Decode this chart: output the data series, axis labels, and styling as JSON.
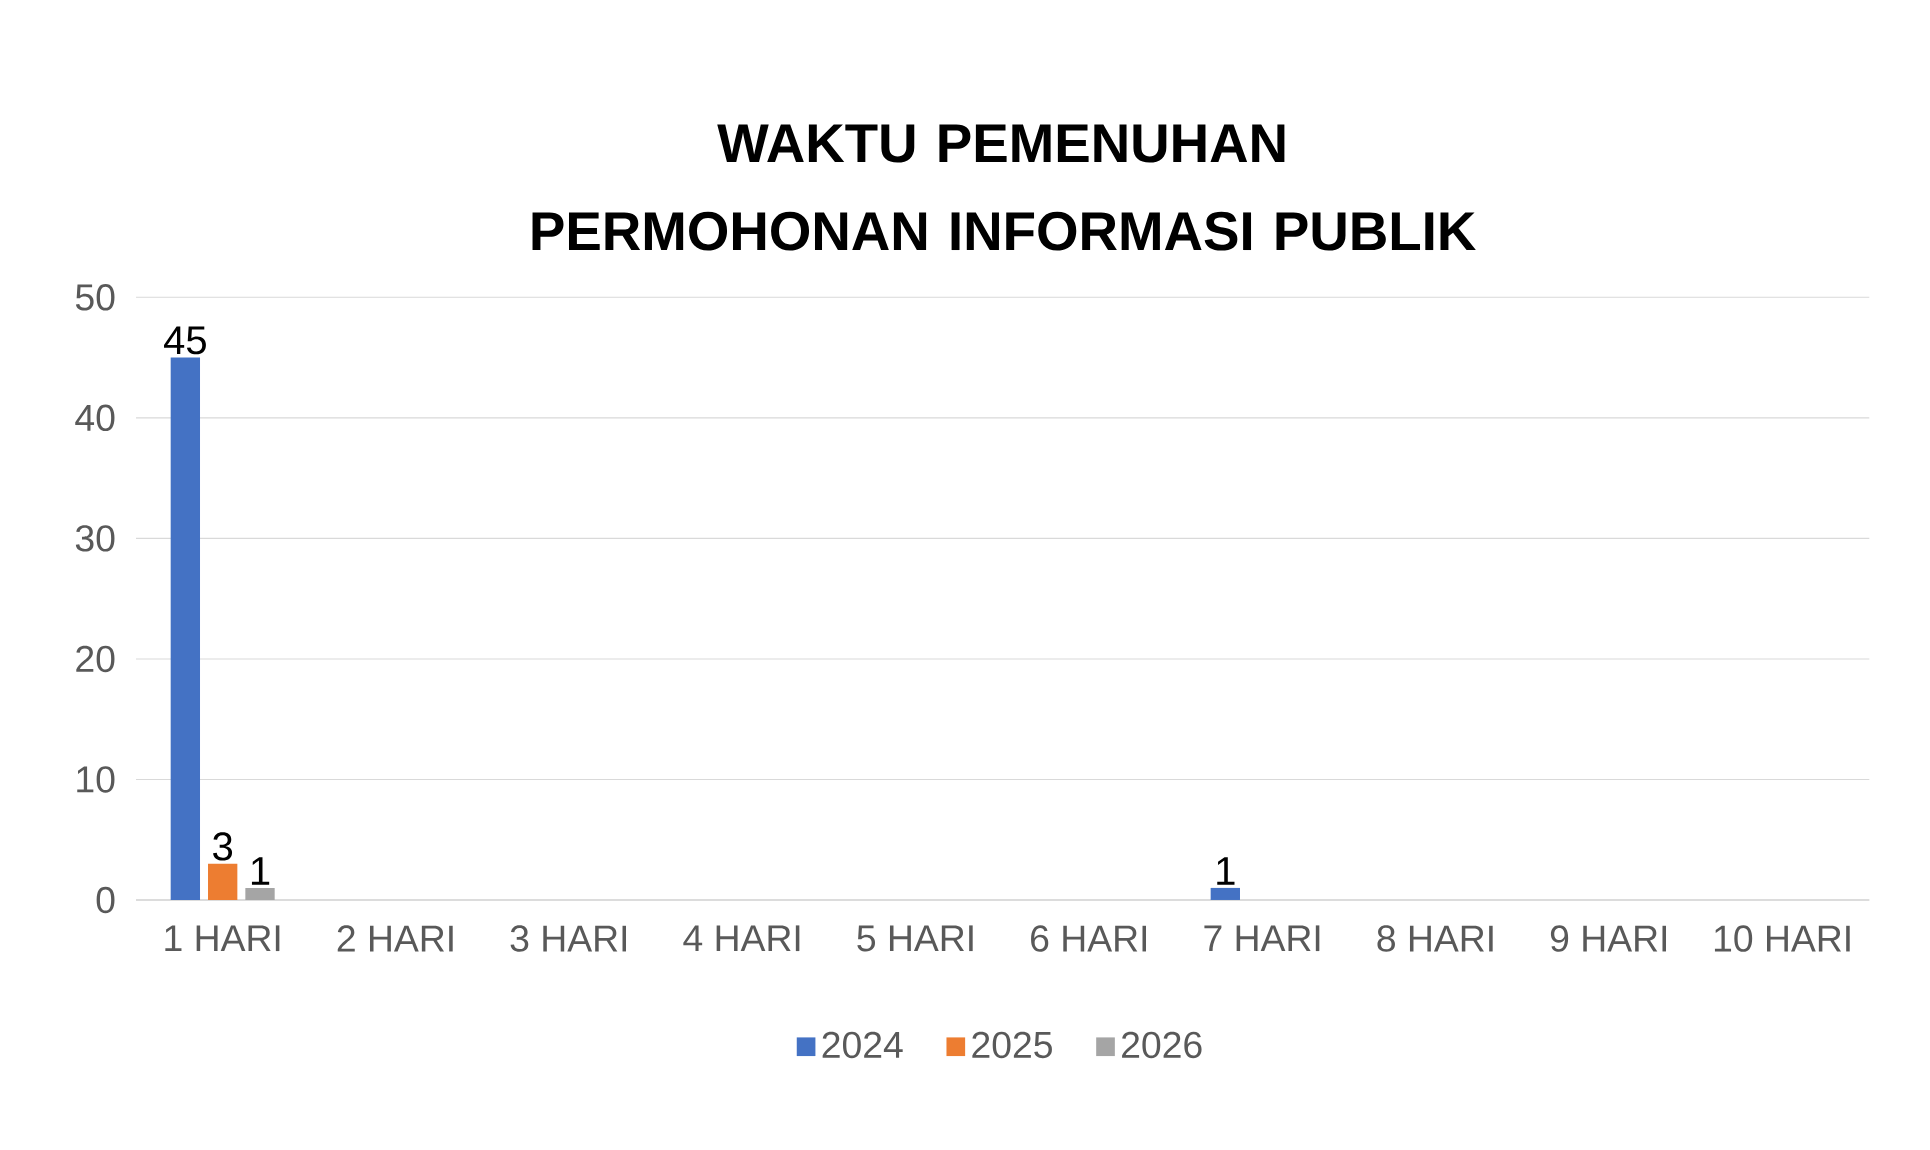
{
  "chart_data": {
    "type": "bar",
    "title": "WAKTU PEMENUHAN PERMOHONAN INFORMASI PUBLIK",
    "categories": [
      "1 HARI",
      "2 HARI",
      "3 HARI",
      "4 HARI",
      "5 HARI",
      "6 HARI",
      "7 HARI",
      "8 HARI",
      "9 HARI",
      "10 HARI"
    ],
    "series": [
      {
        "name": "2024",
        "color": "#4472c4",
        "values": [
          45,
          0,
          0,
          0,
          0,
          0,
          1,
          0,
          0,
          0
        ],
        "value_labels": [
          "45",
          null,
          null,
          null,
          null,
          null,
          "1",
          null,
          null,
          null
        ]
      },
      {
        "name": "2025",
        "color": "#ed7d31",
        "values": [
          3,
          0,
          0,
          0,
          0,
          0,
          0,
          0,
          0,
          0
        ],
        "value_labels": [
          "3",
          null,
          null,
          null,
          null,
          null,
          null,
          null,
          null,
          null
        ]
      },
      {
        "name": "2026",
        "color": "#a5a5a5",
        "values": [
          1,
          0,
          0,
          0,
          0,
          0,
          0,
          0,
          0,
          0
        ],
        "value_labels": [
          "1",
          null,
          null,
          null,
          null,
          null,
          null,
          null,
          null,
          null
        ]
      }
    ],
    "ylim": [
      0,
      50
    ],
    "yticks": [
      0,
      10,
      20,
      30,
      40,
      50
    ],
    "grid": "y",
    "legend": "bottom"
  }
}
